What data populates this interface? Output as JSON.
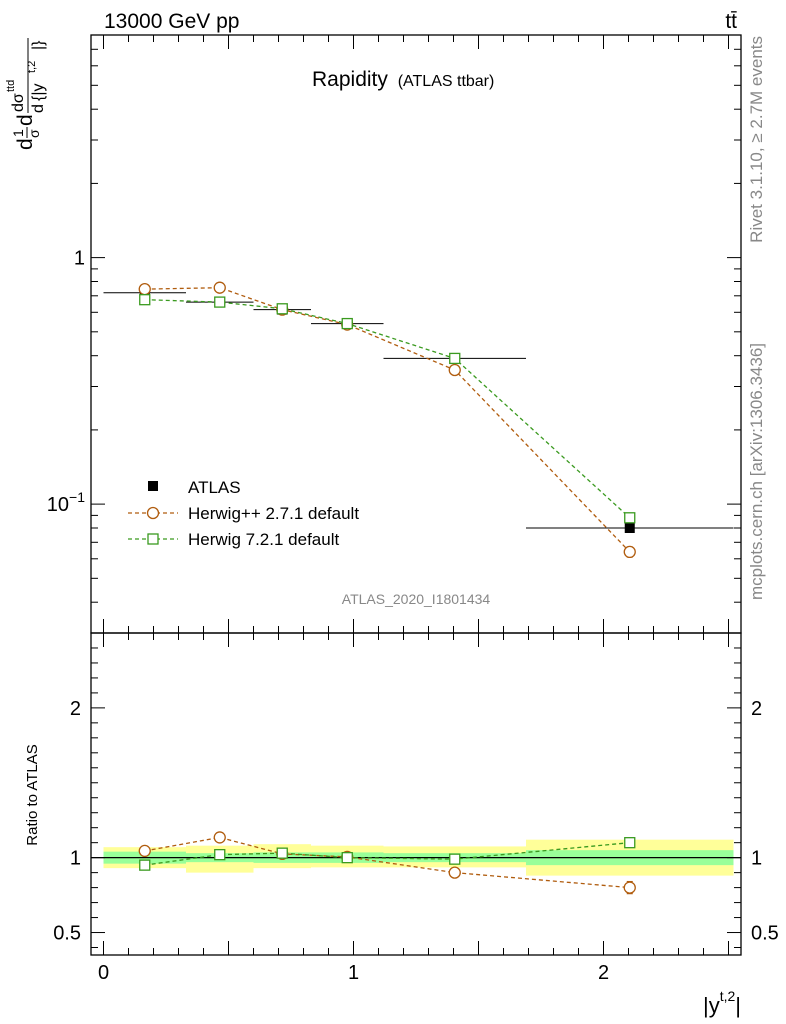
{
  "header": {
    "energy_label": "13000 GeV pp",
    "process_label": "tt̄",
    "plot_title": "Rapidity",
    "plot_subtitle": "(ATLAS ttbar)",
    "analysis_id": "ATLAS_2020_I1801434",
    "side_label_top": "Rivet 3.1.10, ≥ 2.7M events",
    "side_label_bottom": "mcplots.cern.ch [arXiv:1306.3436]"
  },
  "chart_data": [
    {
      "type": "scatter",
      "panel": "main",
      "ylabel_parts": [
        "d",
        "1",
        "σ",
        "d",
        "dσ",
        "ttd",
        "d",
        "{|y",
        "t,2",
        "|}"
      ],
      "yscale": "log",
      "ylim": [
        0.03,
        8.0
      ],
      "xlim": [
        -0.05,
        2.55
      ],
      "y_tick_labels": [
        {
          "value": 0.1,
          "base": "10",
          "exp": "−1"
        },
        {
          "value": 1.0,
          "base": "1",
          "exp": ""
        }
      ],
      "legend_position": "bottom-left",
      "series": [
        {
          "name": "ATLAS",
          "color": "#000000",
          "marker": "filled-square",
          "x": [
            0.165,
            0.465,
            0.715,
            0.975,
            1.405,
            2.105
          ],
          "y": [
            0.72,
            0.66,
            0.615,
            0.54,
            0.39,
            0.08
          ],
          "xerr": [
            0.165,
            0.135,
            0.115,
            0.145,
            0.285,
            0.415
          ]
        },
        {
          "name": "Herwig++ 2.7.1 default",
          "color": "#b05c0e",
          "marker": "open-circle",
          "linestyle": "dashed",
          "x": [
            0.165,
            0.465,
            0.715,
            0.975,
            1.405,
            2.105
          ],
          "y": [
            0.745,
            0.755,
            0.615,
            0.535,
            0.35,
            0.064
          ],
          "yerr": [
            0.008,
            0.008,
            0.007,
            0.007,
            0.006,
            0.003
          ]
        },
        {
          "name": "Herwig 7.2.1 default",
          "color": "#3a9a1f",
          "marker": "open-square",
          "linestyle": "dashed",
          "x": [
            0.165,
            0.465,
            0.715,
            0.975,
            1.405,
            2.105
          ],
          "y": [
            0.675,
            0.66,
            0.62,
            0.54,
            0.39,
            0.088
          ],
          "yerr": [
            0.007,
            0.007,
            0.007,
            0.007,
            0.006,
            0.003
          ]
        }
      ]
    },
    {
      "type": "scatter",
      "panel": "ratio",
      "ylabel": "Ratio to ATLAS",
      "xlabel_base": "|y",
      "xlabel_sup": "t,2",
      "xlabel_end": "|",
      "ylim": [
        0.35,
        2.5
      ],
      "xlim": [
        -0.05,
        2.55
      ],
      "y_tick_labels": [
        "0.5",
        "1",
        "2"
      ],
      "y_tick_values": [
        0.5,
        1,
        2
      ],
      "x_tick_labels": [
        "0",
        "1",
        "2"
      ],
      "x_tick_values": [
        0,
        1,
        2
      ],
      "bands": {
        "edges": [
          0.0,
          0.33,
          0.6,
          0.83,
          1.12,
          1.69,
          2.52
        ],
        "inner": [
          [
            0.96,
            1.04
          ],
          [
            0.97,
            1.03
          ],
          [
            0.965,
            1.035
          ],
          [
            0.965,
            1.035
          ],
          [
            0.97,
            1.03
          ],
          [
            0.95,
            1.05
          ]
        ],
        "outer": [
          [
            0.93,
            1.07
          ],
          [
            0.9,
            1.08
          ],
          [
            0.93,
            1.09
          ],
          [
            0.935,
            1.08
          ],
          [
            0.935,
            1.075
          ],
          [
            0.88,
            1.12
          ]
        ],
        "inner_color": "#99ff99",
        "outer_color": "#ffff99"
      },
      "series": [
        {
          "name": "Herwig++ 2.7.1 default",
          "color": "#b05c0e",
          "marker": "open-circle",
          "x": [
            0.165,
            0.465,
            0.715,
            0.975,
            1.405,
            2.105
          ],
          "y": [
            1.045,
            1.135,
            1.025,
            1.005,
            0.9,
            0.8
          ],
          "yerr": [
            0.0,
            0.0,
            0.0,
            0.01,
            0.0,
            0.04
          ]
        },
        {
          "name": "Herwig 7.2.1 default",
          "color": "#3a9a1f",
          "marker": "open-square",
          "x": [
            0.165,
            0.465,
            0.715,
            0.975,
            1.405,
            2.105
          ],
          "y": [
            0.95,
            1.02,
            1.03,
            1.0,
            0.99,
            1.1
          ],
          "yerr": [
            0.0,
            0.0,
            0.0,
            0.0,
            0.0,
            0.03
          ]
        }
      ]
    }
  ]
}
